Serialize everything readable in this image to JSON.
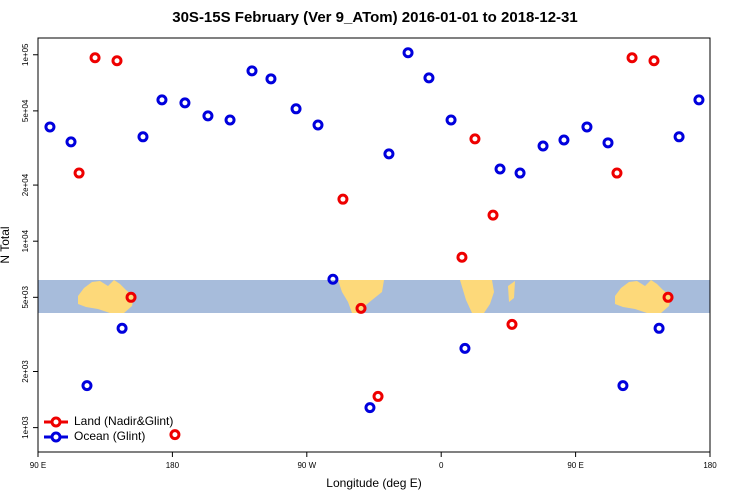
{
  "chart_data": {
    "type": "scatter",
    "title": "30S-15S February (Ver 9_ATom)   2016-01-01 to 2018-12-31",
    "x_label": "Longitude (deg E)",
    "y_label": "N Total",
    "log_y": true,
    "legend": "bottom-left",
    "xlim": [
      90,
      540
    ],
    "xticks": [
      {
        "value": 90,
        "label": "90 E"
      },
      {
        "value": 180,
        "label": "180"
      },
      {
        "value": 270,
        "label": "90 W"
      },
      {
        "value": 360,
        "label": "0"
      },
      {
        "value": 450,
        "label": "90 E"
      },
      {
        "value": 540,
        "label": "180"
      }
    ],
    "ylim": [
      740,
      123000
    ],
    "yticks": [
      {
        "value": 1000,
        "label": "1e+03"
      },
      {
        "value": 2000,
        "label": "2e+03"
      },
      {
        "value": 5000,
        "label": "5e+03"
      },
      {
        "value": 10000,
        "label": "1e+04"
      },
      {
        "value": 20000,
        "label": "2e+04"
      },
      {
        "value": 50000,
        "label": "5e+04"
      },
      {
        "value": 100000,
        "label": "1e+05"
      }
    ],
    "series": [
      {
        "name": "Land (Nadir&Glint)",
        "color": "#ee0000",
        "x": [
          117.5,
          128.2,
          142.9,
          152.3,
          181.7,
          294.2,
          306.3,
          317.7,
          373.9,
          382.6,
          394.7,
          407.4,
          477.7,
          487.8,
          502.5,
          511.9
        ],
        "values": [
          23200,
          96400,
          92900,
          5000,
          917,
          16800,
          4360,
          1470,
          8200,
          35400,
          13800,
          3580,
          23200,
          96400,
          92900,
          5000
        ]
      },
      {
        "name": "Ocean (Glint)",
        "color": "#0000dd",
        "x": [
          98.0,
          112.1,
          122.8,
          146.3,
          160.3,
          173.0,
          188.4,
          203.8,
          218.6,
          233.3,
          246.0,
          262.8,
          277.5,
          287.5,
          312.3,
          325.0,
          337.8,
          351.8,
          366.6,
          375.9,
          399.4,
          412.8,
          428.2,
          442.2,
          457.6,
          471.7,
          481.7,
          505.9,
          519.3,
          532.6
        ],
        "values": [
          41000,
          34100,
          1680,
          3410,
          36300,
          57300,
          55200,
          47000,
          44700,
          82000,
          74300,
          51300,
          42000,
          6250,
          1280,
          29400,
          102500,
          75200,
          44700,
          2660,
          24400,
          23200,
          32400,
          34900,
          41000,
          33700,
          1680,
          3410,
          36300,
          57300
        ]
      }
    ]
  }
}
